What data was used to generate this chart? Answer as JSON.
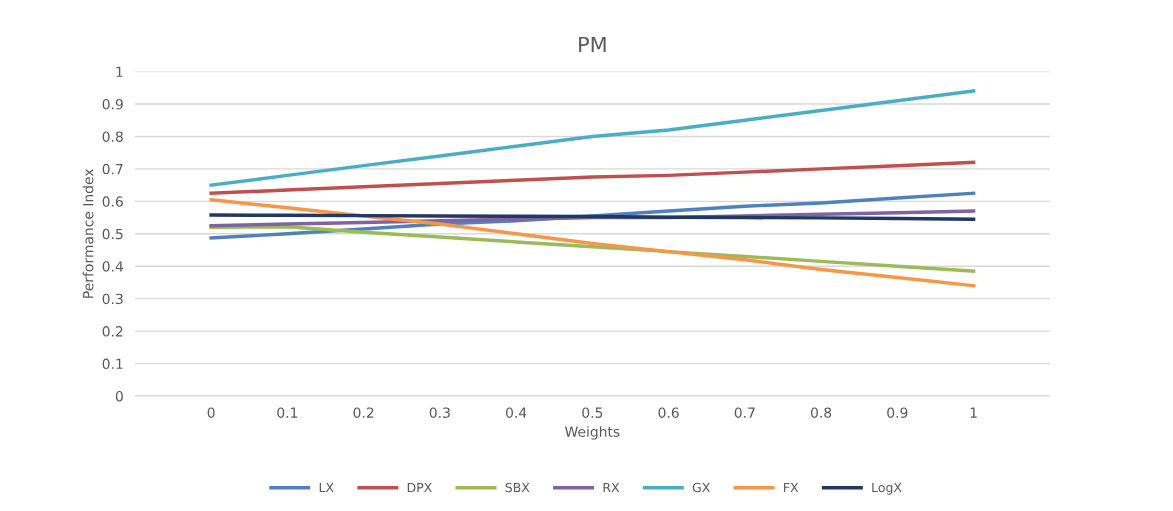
{
  "chart_data": {
    "type": "line",
    "title": "PM",
    "xlabel": "Weights",
    "ylabel": "Performance Index",
    "categories": [
      "0",
      "0.1",
      "0.2",
      "0.3",
      "0.4",
      "0.5",
      "0.6",
      "0.7",
      "0.8",
      "0.9",
      "1"
    ],
    "ylim": [
      0,
      1
    ],
    "yticks": [
      0,
      0.1,
      0.2,
      0.3,
      0.4,
      0.5,
      0.6,
      0.7,
      0.8,
      0.9,
      1
    ],
    "grid": "y",
    "legend": "bottom",
    "marker": "none",
    "line_style": "solid",
    "series": [
      {
        "name": "LX",
        "color": "#4f81bd",
        "values": [
          0.487,
          0.5,
          0.515,
          0.53,
          0.54,
          0.555,
          0.57,
          0.585,
          0.595,
          0.61,
          0.625
        ]
      },
      {
        "name": "DPX",
        "color": "#c0504d",
        "values": [
          0.625,
          0.635,
          0.645,
          0.655,
          0.665,
          0.675,
          0.68,
          0.69,
          0.7,
          0.71,
          0.72
        ]
      },
      {
        "name": "SBX",
        "color": "#9bbb59",
        "values": [
          0.52,
          0.522,
          0.505,
          0.49,
          0.475,
          0.46,
          0.445,
          0.43,
          0.415,
          0.4,
          0.385
        ]
      },
      {
        "name": "RX",
        "color": "#8064a2",
        "values": [
          0.525,
          0.53,
          0.535,
          0.54,
          0.545,
          0.55,
          0.55,
          0.555,
          0.56,
          0.565,
          0.57
        ]
      },
      {
        "name": "GX",
        "color": "#4bacc6",
        "values": [
          0.65,
          0.68,
          0.71,
          0.74,
          0.77,
          0.8,
          0.82,
          0.85,
          0.88,
          0.91,
          0.94
        ]
      },
      {
        "name": "FX",
        "color": "#f79646",
        "values": [
          0.605,
          0.58,
          0.555,
          0.53,
          0.5,
          0.47,
          0.445,
          0.42,
          0.39,
          0.365,
          0.34
        ]
      },
      {
        "name": "LogX",
        "color": "#1f3864",
        "values": [
          0.558,
          0.557,
          0.556,
          0.555,
          0.554,
          0.553,
          0.551,
          0.55,
          0.549,
          0.547,
          0.545
        ]
      }
    ]
  }
}
